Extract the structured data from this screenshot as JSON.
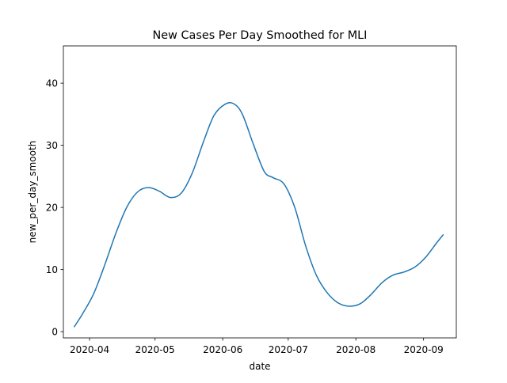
{
  "chart_data": {
    "type": "line",
    "title": "New Cases Per Day Smoothed for MLI",
    "xlabel": "date",
    "ylabel": "new_per_day_smooth",
    "x_axis_type": "date",
    "xlim": [
      "2020-03-20",
      "2020-09-16"
    ],
    "ylim": [
      -1,
      46
    ],
    "grid": false,
    "legend": "none",
    "line_color": "#1f77b4",
    "x_ticks": [
      {
        "date": "2020-04-01",
        "label": "2020-04"
      },
      {
        "date": "2020-05-01",
        "label": "2020-05"
      },
      {
        "date": "2020-06-01",
        "label": "2020-06"
      },
      {
        "date": "2020-07-01",
        "label": "2020-07"
      },
      {
        "date": "2020-08-01",
        "label": "2020-08"
      },
      {
        "date": "2020-09-01",
        "label": "2020-09"
      }
    ],
    "y_ticks": [
      {
        "value": 0,
        "label": "0"
      },
      {
        "value": 10,
        "label": "10"
      },
      {
        "value": 20,
        "label": "20"
      },
      {
        "value": 30,
        "label": "30"
      },
      {
        "value": 40,
        "label": "40"
      }
    ],
    "series": [
      {
        "points": [
          {
            "x": "2020-03-25",
            "y": 0.8
          },
          {
            "x": "2020-03-29",
            "y": 3.0
          },
          {
            "x": "2020-04-03",
            "y": 6.2
          },
          {
            "x": "2020-04-08",
            "y": 10.8
          },
          {
            "x": "2020-04-13",
            "y": 15.8
          },
          {
            "x": "2020-04-18",
            "y": 20.0
          },
          {
            "x": "2020-04-23",
            "y": 22.5
          },
          {
            "x": "2020-04-28",
            "y": 23.2
          },
          {
            "x": "2020-05-03",
            "y": 22.6
          },
          {
            "x": "2020-05-08",
            "y": 21.6
          },
          {
            "x": "2020-05-13",
            "y": 22.3
          },
          {
            "x": "2020-05-18",
            "y": 25.5
          },
          {
            "x": "2020-05-23",
            "y": 30.4
          },
          {
            "x": "2020-05-28",
            "y": 34.8
          },
          {
            "x": "2020-06-02",
            "y": 36.6
          },
          {
            "x": "2020-06-06",
            "y": 36.7
          },
          {
            "x": "2020-06-10",
            "y": 35.0
          },
          {
            "x": "2020-06-15",
            "y": 30.2
          },
          {
            "x": "2020-06-20",
            "y": 25.8
          },
          {
            "x": "2020-06-24",
            "y": 24.8
          },
          {
            "x": "2020-06-29",
            "y": 23.8
          },
          {
            "x": "2020-07-04",
            "y": 20.0
          },
          {
            "x": "2020-07-09",
            "y": 13.8
          },
          {
            "x": "2020-07-14",
            "y": 9.0
          },
          {
            "x": "2020-07-19",
            "y": 6.2
          },
          {
            "x": "2020-07-24",
            "y": 4.6
          },
          {
            "x": "2020-07-29",
            "y": 4.1
          },
          {
            "x": "2020-08-03",
            "y": 4.5
          },
          {
            "x": "2020-08-08",
            "y": 6.0
          },
          {
            "x": "2020-08-13",
            "y": 7.9
          },
          {
            "x": "2020-08-18",
            "y": 9.1
          },
          {
            "x": "2020-08-23",
            "y": 9.6
          },
          {
            "x": "2020-08-28",
            "y": 10.4
          },
          {
            "x": "2020-09-02",
            "y": 12.0
          },
          {
            "x": "2020-09-07",
            "y": 14.3
          },
          {
            "x": "2020-09-10",
            "y": 15.6
          }
        ]
      }
    ]
  }
}
